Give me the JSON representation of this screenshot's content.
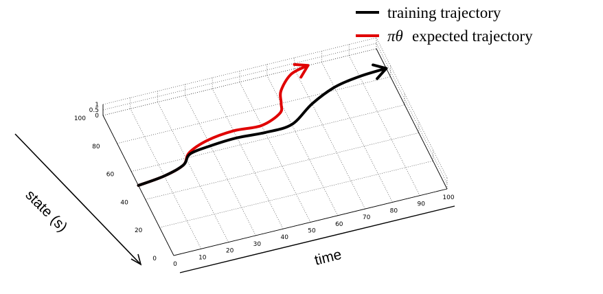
{
  "chart_data": {
    "type": "line",
    "view": "3d",
    "title": "",
    "xlabel": "time",
    "ylabel": "state (s)",
    "zlabel": "",
    "xlim": [
      0,
      100
    ],
    "ylim": [
      0,
      100
    ],
    "zlim": [
      0,
      1
    ],
    "x_ticks": [
      "0",
      "10",
      "20",
      "30",
      "40",
      "50",
      "60",
      "70",
      "80",
      "90",
      "100"
    ],
    "y_ticks": [
      "0",
      "20",
      "40",
      "60",
      "80",
      "100"
    ],
    "z_ticks": [
      "0",
      "0.5",
      "1"
    ],
    "grid": true,
    "legend": {
      "placement": "top-right",
      "entries": [
        {
          "label": "training trajectory",
          "color": "#000000"
        },
        {
          "symbol": "πθ",
          "label": "expected trajectory",
          "color": "#e00000"
        }
      ]
    },
    "series": [
      {
        "name": "training trajectory",
        "color": "#000000",
        "x": [
          0,
          10,
          18,
          22,
          30,
          40,
          50,
          60,
          70,
          80,
          90,
          100
        ],
        "y": [
          50,
          52,
          56,
          62,
          64,
          65,
          64,
          65,
          75,
          82,
          85,
          86
        ],
        "z": [
          0,
          0,
          0,
          0,
          0,
          0,
          0,
          0,
          0,
          0,
          0,
          0
        ]
      },
      {
        "name": "πθ expected trajectory",
        "color": "#e00000",
        "x": [
          0,
          10,
          18,
          22,
          30,
          40,
          50,
          58,
          60,
          62,
          68,
          75
        ],
        "y": [
          50,
          52,
          56,
          63,
          68,
          70,
          69,
          74,
          80,
          88,
          97,
          100
        ],
        "z": [
          0,
          0,
          0,
          0,
          0,
          0,
          0,
          0,
          0,
          0,
          0,
          0
        ]
      }
    ]
  }
}
